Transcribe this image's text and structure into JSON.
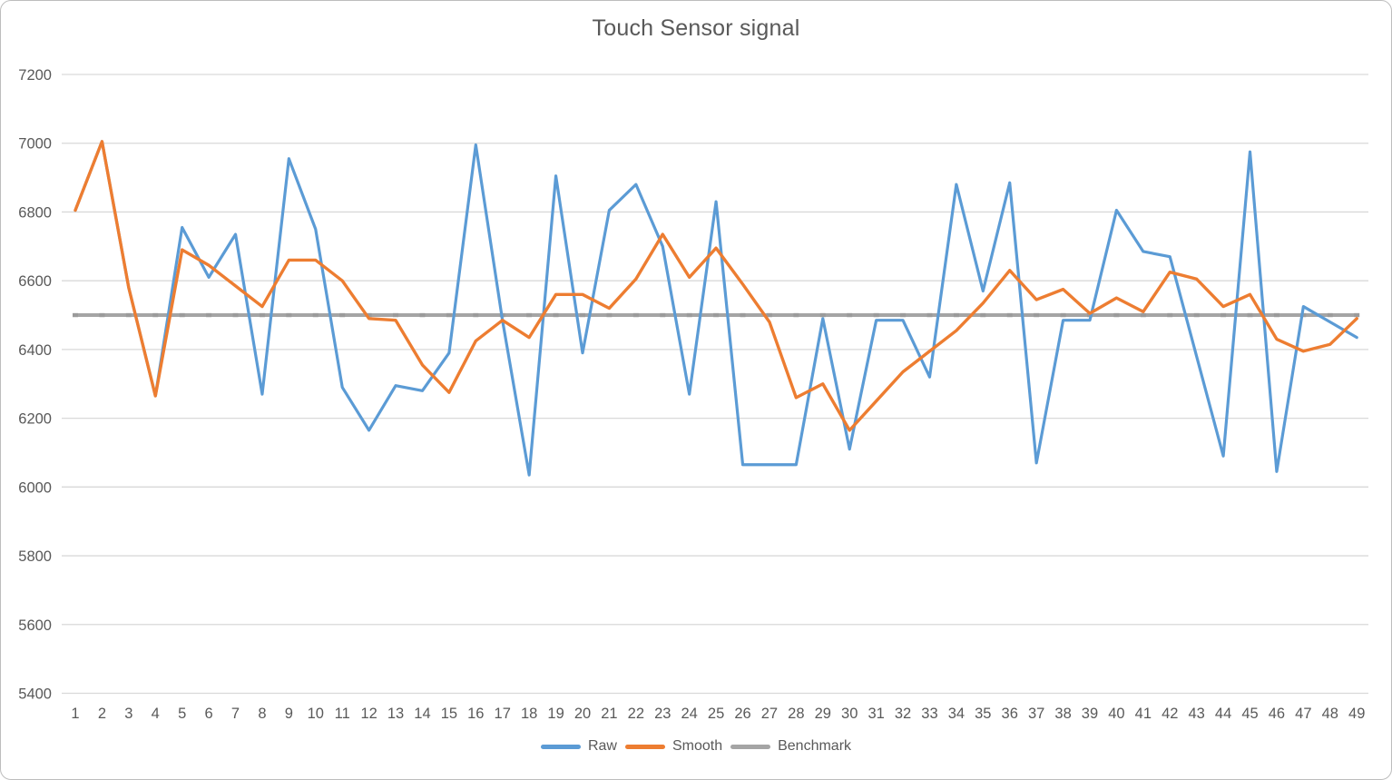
{
  "chart_data": {
    "type": "line",
    "title": "Touch Sensor signal",
    "x_labels": [
      1,
      2,
      3,
      4,
      5,
      6,
      7,
      8,
      9,
      10,
      11,
      12,
      13,
      14,
      15,
      16,
      17,
      18,
      19,
      20,
      21,
      22,
      23,
      24,
      25,
      26,
      27,
      28,
      29,
      30,
      31,
      32,
      33,
      34,
      35,
      36,
      37,
      38,
      39,
      40,
      41,
      42,
      43,
      44,
      45,
      46,
      47,
      48,
      49
    ],
    "series": [
      {
        "name": "Raw",
        "color": "#5B9BD5",
        "width": 3.2,
        "values": [
          6805,
          7005,
          6580,
          6265,
          6755,
          6610,
          6735,
          6270,
          6955,
          6750,
          6290,
          6165,
          6295,
          6280,
          6390,
          6995,
          6485,
          6035,
          6905,
          6390,
          6805,
          6880,
          6700,
          6270,
          6830,
          6065,
          6065,
          6065,
          6490,
          6110,
          6485,
          6485,
          6320,
          6880,
          6570,
          6885,
          6070,
          6485,
          6485,
          6805,
          6685,
          6670,
          6380,
          6090,
          6975,
          6045,
          6525,
          6480,
          6435
        ]
      },
      {
        "name": "Smooth",
        "color": "#ED7D31",
        "width": 3.4,
        "values": [
          6805,
          7005,
          6580,
          6265,
          6690,
          6645,
          6585,
          6525,
          6660,
          6660,
          6600,
          6490,
          6485,
          6355,
          6275,
          6425,
          6485,
          6435,
          6560,
          6560,
          6520,
          6605,
          6735,
          6610,
          6695,
          6590,
          6480,
          6260,
          6300,
          6165,
          6250,
          6335,
          6395,
          6455,
          6535,
          6630,
          6545,
          6575,
          6505,
          6550,
          6510,
          6625,
          6605,
          6525,
          6560,
          6430,
          6395,
          6415,
          6490
        ]
      },
      {
        "name": "Benchmark",
        "color": "#A5A5A5",
        "width": 4,
        "constant": 6500
      }
    ],
    "ylim": [
      5400,
      7200
    ],
    "ytick_step": 200,
    "grid": "horizontal",
    "legend_position": "bottom",
    "gridline_color": "#D9D9D9",
    "axis_text_color": "#595959",
    "title_color": "#595959",
    "benchmark_tick_color": "#9b9b9b"
  }
}
